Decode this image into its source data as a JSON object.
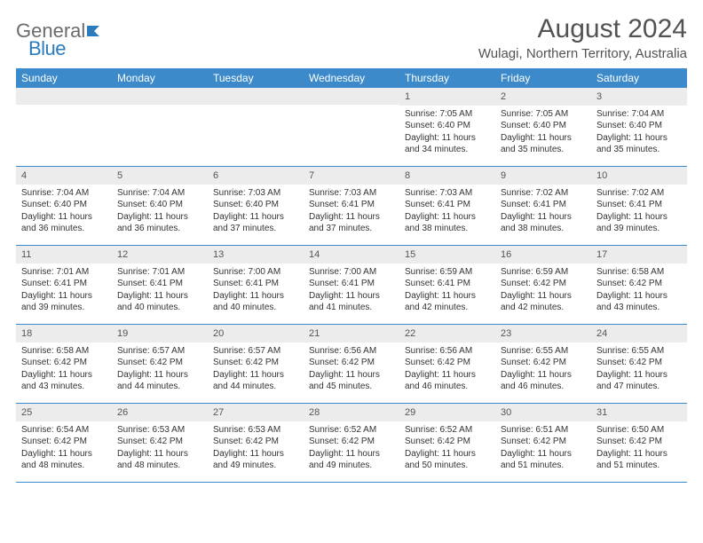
{
  "branding": {
    "logo_part1": "General",
    "logo_part2": "Blue",
    "logo_accent_color": "#2b7bbd",
    "logo_gray_color": "#6b6b6b"
  },
  "title": "August 2024",
  "location": "Wulagi, Northern Territory, Australia",
  "header_bg_color": "#3c8ac9",
  "day_num_bg_color": "#ececec",
  "border_color": "#3c8ac9",
  "weekdays": [
    "Sunday",
    "Monday",
    "Tuesday",
    "Wednesday",
    "Thursday",
    "Friday",
    "Saturday"
  ],
  "weeks": [
    [
      {
        "day": "",
        "sunrise": "",
        "sunset": "",
        "daylight1": "",
        "daylight2": ""
      },
      {
        "day": "",
        "sunrise": "",
        "sunset": "",
        "daylight1": "",
        "daylight2": ""
      },
      {
        "day": "",
        "sunrise": "",
        "sunset": "",
        "daylight1": "",
        "daylight2": ""
      },
      {
        "day": "",
        "sunrise": "",
        "sunset": "",
        "daylight1": "",
        "daylight2": ""
      },
      {
        "day": "1",
        "sunrise": "Sunrise: 7:05 AM",
        "sunset": "Sunset: 6:40 PM",
        "daylight1": "Daylight: 11 hours",
        "daylight2": "and 34 minutes."
      },
      {
        "day": "2",
        "sunrise": "Sunrise: 7:05 AM",
        "sunset": "Sunset: 6:40 PM",
        "daylight1": "Daylight: 11 hours",
        "daylight2": "and 35 minutes."
      },
      {
        "day": "3",
        "sunrise": "Sunrise: 7:04 AM",
        "sunset": "Sunset: 6:40 PM",
        "daylight1": "Daylight: 11 hours",
        "daylight2": "and 35 minutes."
      }
    ],
    [
      {
        "day": "4",
        "sunrise": "Sunrise: 7:04 AM",
        "sunset": "Sunset: 6:40 PM",
        "daylight1": "Daylight: 11 hours",
        "daylight2": "and 36 minutes."
      },
      {
        "day": "5",
        "sunrise": "Sunrise: 7:04 AM",
        "sunset": "Sunset: 6:40 PM",
        "daylight1": "Daylight: 11 hours",
        "daylight2": "and 36 minutes."
      },
      {
        "day": "6",
        "sunrise": "Sunrise: 7:03 AM",
        "sunset": "Sunset: 6:40 PM",
        "daylight1": "Daylight: 11 hours",
        "daylight2": "and 37 minutes."
      },
      {
        "day": "7",
        "sunrise": "Sunrise: 7:03 AM",
        "sunset": "Sunset: 6:41 PM",
        "daylight1": "Daylight: 11 hours",
        "daylight2": "and 37 minutes."
      },
      {
        "day": "8",
        "sunrise": "Sunrise: 7:03 AM",
        "sunset": "Sunset: 6:41 PM",
        "daylight1": "Daylight: 11 hours",
        "daylight2": "and 38 minutes."
      },
      {
        "day": "9",
        "sunrise": "Sunrise: 7:02 AM",
        "sunset": "Sunset: 6:41 PM",
        "daylight1": "Daylight: 11 hours",
        "daylight2": "and 38 minutes."
      },
      {
        "day": "10",
        "sunrise": "Sunrise: 7:02 AM",
        "sunset": "Sunset: 6:41 PM",
        "daylight1": "Daylight: 11 hours",
        "daylight2": "and 39 minutes."
      }
    ],
    [
      {
        "day": "11",
        "sunrise": "Sunrise: 7:01 AM",
        "sunset": "Sunset: 6:41 PM",
        "daylight1": "Daylight: 11 hours",
        "daylight2": "and 39 minutes."
      },
      {
        "day": "12",
        "sunrise": "Sunrise: 7:01 AM",
        "sunset": "Sunset: 6:41 PM",
        "daylight1": "Daylight: 11 hours",
        "daylight2": "and 40 minutes."
      },
      {
        "day": "13",
        "sunrise": "Sunrise: 7:00 AM",
        "sunset": "Sunset: 6:41 PM",
        "daylight1": "Daylight: 11 hours",
        "daylight2": "and 40 minutes."
      },
      {
        "day": "14",
        "sunrise": "Sunrise: 7:00 AM",
        "sunset": "Sunset: 6:41 PM",
        "daylight1": "Daylight: 11 hours",
        "daylight2": "and 41 minutes."
      },
      {
        "day": "15",
        "sunrise": "Sunrise: 6:59 AM",
        "sunset": "Sunset: 6:41 PM",
        "daylight1": "Daylight: 11 hours",
        "daylight2": "and 42 minutes."
      },
      {
        "day": "16",
        "sunrise": "Sunrise: 6:59 AM",
        "sunset": "Sunset: 6:42 PM",
        "daylight1": "Daylight: 11 hours",
        "daylight2": "and 42 minutes."
      },
      {
        "day": "17",
        "sunrise": "Sunrise: 6:58 AM",
        "sunset": "Sunset: 6:42 PM",
        "daylight1": "Daylight: 11 hours",
        "daylight2": "and 43 minutes."
      }
    ],
    [
      {
        "day": "18",
        "sunrise": "Sunrise: 6:58 AM",
        "sunset": "Sunset: 6:42 PM",
        "daylight1": "Daylight: 11 hours",
        "daylight2": "and 43 minutes."
      },
      {
        "day": "19",
        "sunrise": "Sunrise: 6:57 AM",
        "sunset": "Sunset: 6:42 PM",
        "daylight1": "Daylight: 11 hours",
        "daylight2": "and 44 minutes."
      },
      {
        "day": "20",
        "sunrise": "Sunrise: 6:57 AM",
        "sunset": "Sunset: 6:42 PM",
        "daylight1": "Daylight: 11 hours",
        "daylight2": "and 44 minutes."
      },
      {
        "day": "21",
        "sunrise": "Sunrise: 6:56 AM",
        "sunset": "Sunset: 6:42 PM",
        "daylight1": "Daylight: 11 hours",
        "daylight2": "and 45 minutes."
      },
      {
        "day": "22",
        "sunrise": "Sunrise: 6:56 AM",
        "sunset": "Sunset: 6:42 PM",
        "daylight1": "Daylight: 11 hours",
        "daylight2": "and 46 minutes."
      },
      {
        "day": "23",
        "sunrise": "Sunrise: 6:55 AM",
        "sunset": "Sunset: 6:42 PM",
        "daylight1": "Daylight: 11 hours",
        "daylight2": "and 46 minutes."
      },
      {
        "day": "24",
        "sunrise": "Sunrise: 6:55 AM",
        "sunset": "Sunset: 6:42 PM",
        "daylight1": "Daylight: 11 hours",
        "daylight2": "and 47 minutes."
      }
    ],
    [
      {
        "day": "25",
        "sunrise": "Sunrise: 6:54 AM",
        "sunset": "Sunset: 6:42 PM",
        "daylight1": "Daylight: 11 hours",
        "daylight2": "and 48 minutes."
      },
      {
        "day": "26",
        "sunrise": "Sunrise: 6:53 AM",
        "sunset": "Sunset: 6:42 PM",
        "daylight1": "Daylight: 11 hours",
        "daylight2": "and 48 minutes."
      },
      {
        "day": "27",
        "sunrise": "Sunrise: 6:53 AM",
        "sunset": "Sunset: 6:42 PM",
        "daylight1": "Daylight: 11 hours",
        "daylight2": "and 49 minutes."
      },
      {
        "day": "28",
        "sunrise": "Sunrise: 6:52 AM",
        "sunset": "Sunset: 6:42 PM",
        "daylight1": "Daylight: 11 hours",
        "daylight2": "and 49 minutes."
      },
      {
        "day": "29",
        "sunrise": "Sunrise: 6:52 AM",
        "sunset": "Sunset: 6:42 PM",
        "daylight1": "Daylight: 11 hours",
        "daylight2": "and 50 minutes."
      },
      {
        "day": "30",
        "sunrise": "Sunrise: 6:51 AM",
        "sunset": "Sunset: 6:42 PM",
        "daylight1": "Daylight: 11 hours",
        "daylight2": "and 51 minutes."
      },
      {
        "day": "31",
        "sunrise": "Sunrise: 6:50 AM",
        "sunset": "Sunset: 6:42 PM",
        "daylight1": "Daylight: 11 hours",
        "daylight2": "and 51 minutes."
      }
    ]
  ]
}
